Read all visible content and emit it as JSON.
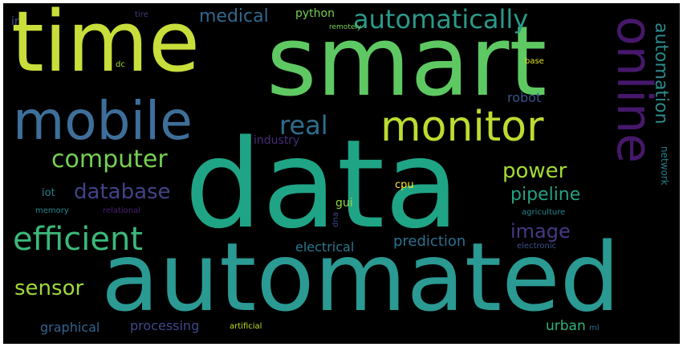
{
  "words": {
    "data": "data",
    "automated": "automated",
    "smart": "smart",
    "time": "time",
    "online": "online",
    "mobile": "mobile",
    "monitor": "monitor",
    "automatically": "automatically",
    "efficient": "efficient",
    "computer": "computer",
    "real": "real",
    "database": "database",
    "power": "power",
    "pipeline": "pipeline",
    "automation": "automation",
    "image": "image",
    "sensor": "sensor",
    "medical": "medical",
    "prediction": "prediction",
    "robot": "robot",
    "electrical": "electrical",
    "urban": "urban",
    "processing": "processing",
    "graphical": "graphical",
    "python": "python",
    "industry": "industry",
    "network": "network",
    "iot": "iot",
    "gui": "gui",
    "cpu": "cpu",
    "memory": "memory",
    "relational": "relational",
    "dna": "dna",
    "agriculture": "agriculture",
    "electronic": "electronic",
    "artificial": "artificial",
    "ml": "ml",
    "remotely": "remotely",
    "tire": "tire",
    "ir": "ir",
    "dc": "dc",
    "base": "base"
  }
}
